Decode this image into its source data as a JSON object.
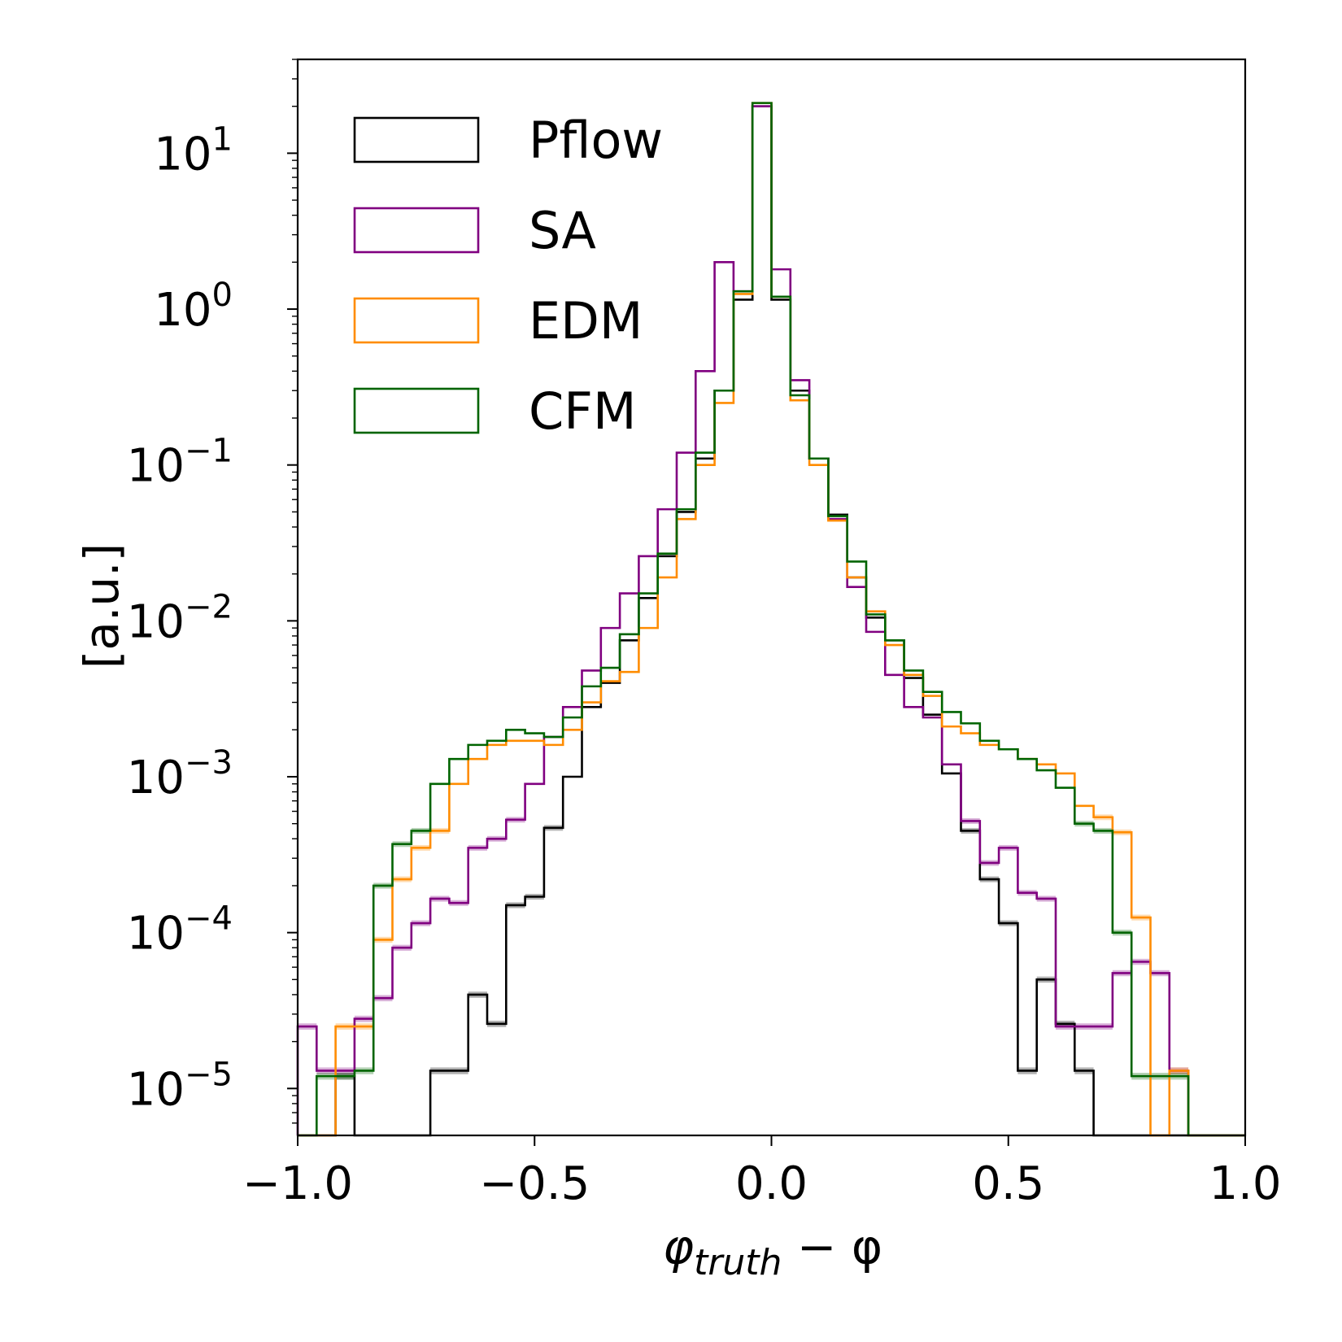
{
  "chart_data": {
    "type": "histogram-step",
    "title": "",
    "xlabel_main": "φ",
    "xlabel_sub": "truth",
    "xlabel_tail": " − φ",
    "ylabel": "[a.u.]",
    "yscale": "log",
    "xlim": [
      -1.0,
      1.0
    ],
    "ylim": [
      5e-06,
      40
    ],
    "xticks": [
      -1.0,
      -0.5,
      0.0,
      0.5,
      1.0
    ],
    "xtick_labels": [
      "−1.0",
      "−0.5",
      "0.0",
      "0.5",
      "1.0"
    ],
    "yticks": [
      {
        "value": 10,
        "base": "10",
        "exp": "1"
      },
      {
        "value": 1,
        "base": "10",
        "exp": "0"
      },
      {
        "value": 0.1,
        "base": "10",
        "exp": "−1"
      },
      {
        "value": 0.01,
        "base": "10",
        "exp": "−2"
      },
      {
        "value": 0.001,
        "base": "10",
        "exp": "−3"
      },
      {
        "value": 0.0001,
        "base": "10",
        "exp": "−4"
      },
      {
        "value": 1e-05,
        "base": "10",
        "exp": "−5"
      }
    ],
    "legend_position": "top-left",
    "bin_edges_start": -1.0,
    "bin_width": 0.04,
    "n_bins": 50,
    "series": [
      {
        "name": "Pflow",
        "color": "#000000",
        "values": [
          0,
          0,
          1.2e-05,
          0,
          0,
          0,
          0,
          1.3e-05,
          1.3e-05,
          4e-05,
          2.6e-05,
          0.00015,
          0.00017,
          0.00047,
          0.001,
          0.0028,
          0.004,
          0.0075,
          0.014,
          0.026,
          0.05,
          0.11,
          0.3,
          1.15,
          20,
          1.15,
          0.3,
          0.11,
          0.048,
          0.019,
          0.0105,
          0.0075,
          0.0043,
          0.0025,
          0.00105,
          0.00045,
          0.00022,
          0.000115,
          1.3e-05,
          5e-05,
          2.6e-05,
          1.3e-05,
          0,
          0,
          0,
          0,
          0,
          0,
          0,
          0
        ]
      },
      {
        "name": "SA",
        "color": "#800080",
        "values": [
          2.5e-05,
          1.3e-05,
          1.3e-05,
          2.8e-05,
          3.8e-05,
          8e-05,
          0.000115,
          0.000165,
          0.000155,
          0.00035,
          0.0004,
          0.00053,
          0.0009,
          0.0018,
          0.0028,
          0.0048,
          0.009,
          0.015,
          0.026,
          0.052,
          0.12,
          0.4,
          2.0,
          1.3,
          20,
          1.8,
          0.35,
          0.11,
          0.045,
          0.0165,
          0.0085,
          0.0045,
          0.0028,
          0.0024,
          0.0012,
          0.00052,
          0.00028,
          0.00035,
          0.00018,
          0.000165,
          2.5e-05,
          2.5e-05,
          2.5e-05,
          5.5e-05,
          6.5e-05,
          5.5e-05,
          1.3e-05,
          0,
          0,
          0
        ]
      },
      {
        "name": "EDM",
        "color": "#FF8C00",
        "values": [
          0,
          0,
          2.5e-05,
          2.5e-05,
          9e-05,
          0.00022,
          0.00035,
          0.00045,
          0.0009,
          0.0013,
          0.0016,
          0.0017,
          0.0017,
          0.0016,
          0.002,
          0.003,
          0.0041,
          0.0047,
          0.009,
          0.019,
          0.045,
          0.1,
          0.25,
          1.25,
          21,
          1.2,
          0.26,
          0.1,
          0.044,
          0.019,
          0.0115,
          0.007,
          0.0045,
          0.0033,
          0.0021,
          0.0019,
          0.0016,
          0.0015,
          0.0013,
          0.0012,
          0.00105,
          0.00065,
          0.00055,
          0.00044,
          0.000125,
          0,
          1.3e-05,
          0,
          0,
          0
        ]
      },
      {
        "name": "CFM",
        "color": "#006400",
        "values": [
          0,
          1.2e-05,
          1.2e-05,
          1.3e-05,
          0.0002,
          0.00037,
          0.00045,
          0.0009,
          0.0013,
          0.0016,
          0.0017,
          0.002,
          0.0019,
          0.0018,
          0.0024,
          0.0038,
          0.005,
          0.0082,
          0.015,
          0.027,
          0.052,
          0.12,
          0.3,
          1.3,
          21,
          1.2,
          0.28,
          0.11,
          0.047,
          0.024,
          0.011,
          0.0075,
          0.0048,
          0.0035,
          0.0026,
          0.0022,
          0.0017,
          0.0015,
          0.0013,
          0.0011,
          0.00085,
          0.0005,
          0.00045,
          0.0001,
          1.2e-05,
          1.2e-05,
          1.2e-05,
          0,
          0,
          0
        ]
      }
    ]
  }
}
